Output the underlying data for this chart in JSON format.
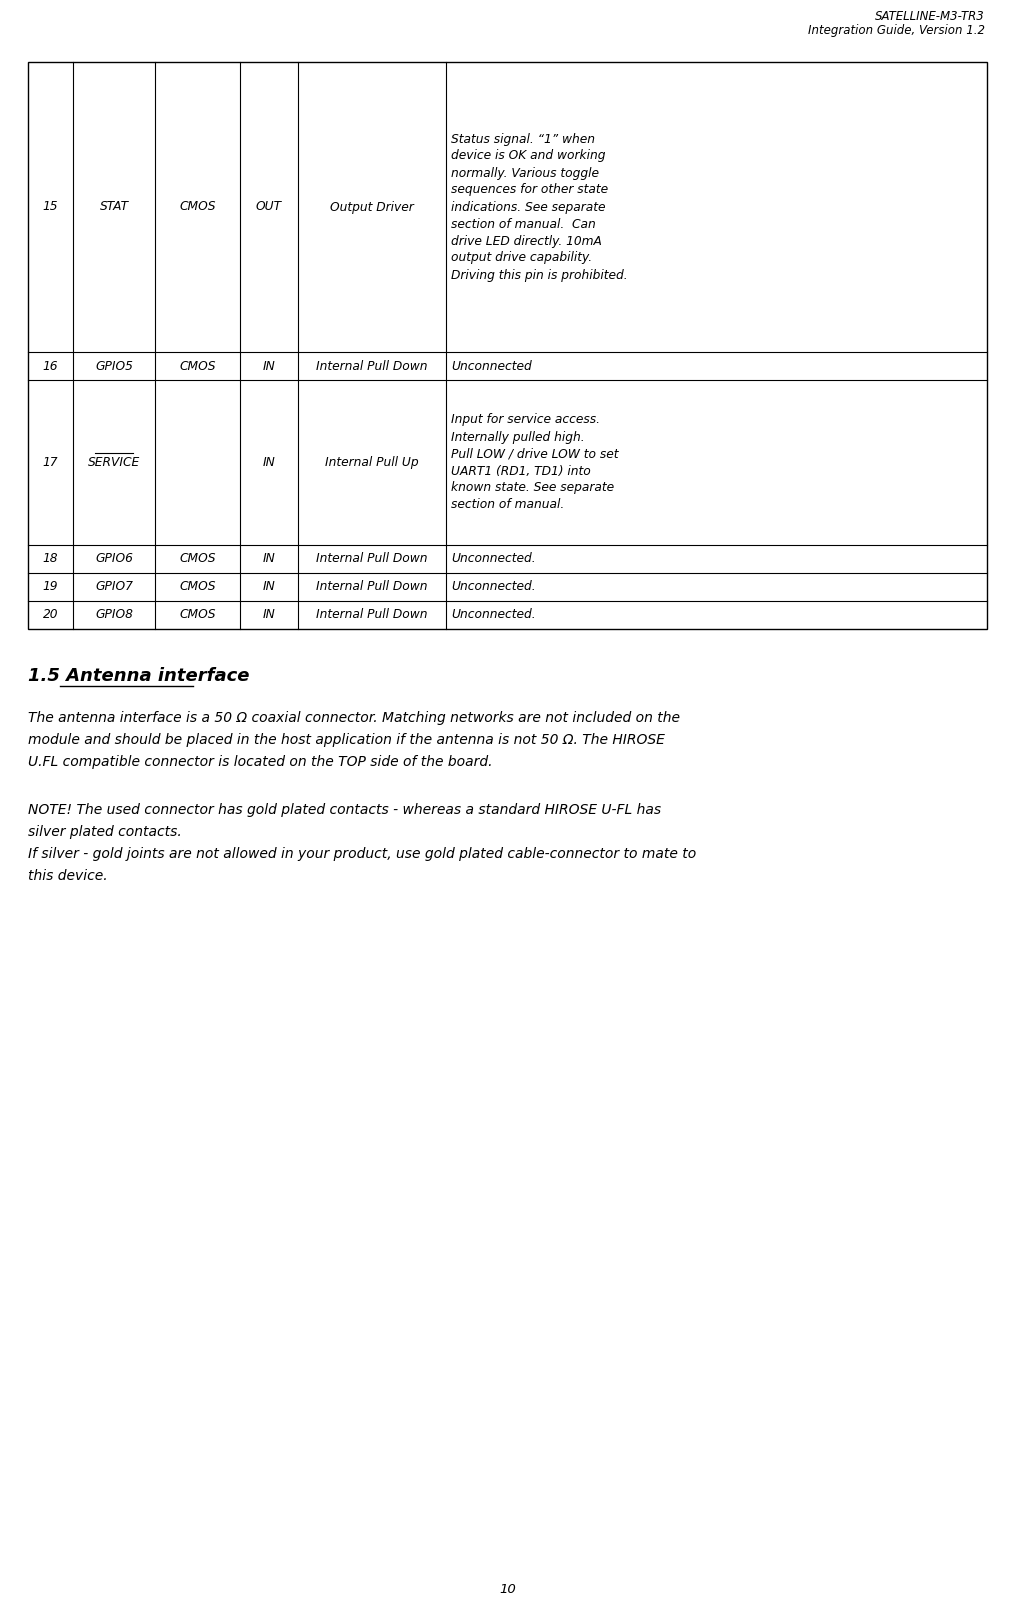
{
  "header_line1": "SATELLINE-M3-TR3",
  "header_line2": "Integration Guide, Version 1.2",
  "page_number": "10",
  "table_rows": [
    {
      "pin": "15",
      "name": "STAT",
      "type": "CMOS",
      "dir": "OUT",
      "pull": "Output Driver",
      "desc_lines": [
        "Status signal. “1” when",
        "device is OK and working",
        "normally. Various toggle",
        "sequences for other state",
        "indications. See separate",
        "section of manual.  Can",
        "drive LED directly. 10mA",
        "output drive capability.",
        "Driving this pin is prohibited."
      ],
      "name_overline": false
    },
    {
      "pin": "16",
      "name": "GPIO5",
      "type": "CMOS",
      "dir": "IN",
      "pull": "Internal Pull Down",
      "desc_lines": [
        "Unconnected"
      ],
      "name_overline": false
    },
    {
      "pin": "17",
      "name": "SERVICE",
      "type": "",
      "dir": "IN",
      "pull": "Internal Pull Up",
      "desc_lines": [
        "Input for service access.",
        "Internally pulled high.",
        "Pull LOW / drive LOW to set",
        "UART1 (RD1, TD1) into",
        "known state. See separate",
        "section of manual."
      ],
      "name_overline": true
    },
    {
      "pin": "18",
      "name": "GPIO6",
      "type": "CMOS",
      "dir": "IN",
      "pull": "Internal Pull Down",
      "desc_lines": [
        "Unconnected."
      ],
      "name_overline": false
    },
    {
      "pin": "19",
      "name": "GPIO7",
      "type": "CMOS",
      "dir": "IN",
      "pull": "Internal Pull Down",
      "desc_lines": [
        "Unconnected."
      ],
      "name_overline": false
    },
    {
      "pin": "20",
      "name": "GPIO8",
      "type": "CMOS",
      "dir": "IN",
      "pull": "Internal Pull Down",
      "desc_lines": [
        "Unconnected."
      ],
      "name_overline": false
    }
  ],
  "section_title_num": "1.5",
  "section_title_text": "Antenna interface",
  "para1_lines": [
    "The antenna interface is a 50 Ω coaxial connector. Matching networks are not included on the",
    "module and should be placed in the host application if the antenna is not 50 Ω. The HIROSE",
    "U.FL compatible connector is located on the TOP side of the board."
  ],
  "para2_lines": [
    "NOTE! The used connector has gold plated contacts - whereas a standard HIROSE U-FL has",
    "silver plated contacts.",
    "If silver - gold joints are not allowed in your product, use gold plated cable-connector to mate to",
    "this device."
  ],
  "bg_color": "#ffffff"
}
